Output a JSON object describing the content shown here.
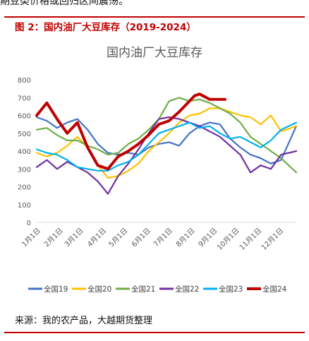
{
  "header": {
    "top_text": "期豆类价格或回归区间震荡。",
    "figure_title": "图 2：国内油厂大豆库存（2019-2024）",
    "source": "来源：我的农产品，大越期货整理"
  },
  "chart_data": {
    "type": "line",
    "title": "国内油厂大豆库存",
    "xlabel": "",
    "ylabel": "",
    "ylim": [
      0,
      800
    ],
    "yticks": [
      0,
      100,
      200,
      300,
      400,
      500,
      600,
      700,
      800
    ],
    "xlim": [
      0,
      51
    ],
    "x_tick_labels": [
      {
        "label": "1月1日",
        "week": 0
      },
      {
        "label": "2月1日",
        "week": 4.4
      },
      {
        "label": "3月1日",
        "week": 8.4
      },
      {
        "label": "4月1日",
        "week": 12.9
      },
      {
        "label": "5月1日",
        "week": 17.1
      },
      {
        "label": "6月1日",
        "week": 21.6
      },
      {
        "label": "7月1日",
        "week": 25.9
      },
      {
        "label": "8月1日",
        "week": 30.3
      },
      {
        "label": "9月1日",
        "week": 34.7
      },
      {
        "label": "10月1日",
        "week": 39.0
      },
      {
        "label": "11月1日",
        "week": 43.4
      },
      {
        "label": "12月1日",
        "week": 47.7
      }
    ],
    "grid": false,
    "legend_position": "bottom",
    "series": [
      {
        "name": "全国19",
        "color": "#4472C4",
        "width": 2.2,
        "x": [
          0,
          2,
          4,
          6,
          8,
          10,
          12,
          14,
          16,
          18,
          20,
          22,
          24,
          26,
          28,
          30,
          32,
          34,
          36,
          38,
          40,
          42,
          44,
          46,
          48,
          51
        ],
        "values": [
          590,
          570,
          530,
          560,
          580,
          520,
          440,
          390,
          380,
          390,
          380,
          420,
          440,
          450,
          430,
          500,
          540,
          560,
          550,
          470,
          420,
          380,
          360,
          330,
          350,
          540
        ]
      },
      {
        "name": "全国20",
        "color": "#FFC000",
        "width": 2.2,
        "x": [
          0,
          2,
          4,
          6,
          8,
          10,
          12,
          14,
          16,
          18,
          20,
          22,
          24,
          26,
          28,
          30,
          32,
          34,
          36,
          38,
          40,
          42,
          44,
          46,
          48,
          51
        ],
        "values": [
          390,
          370,
          390,
          430,
          480,
          420,
          320,
          250,
          260,
          290,
          330,
          400,
          450,
          500,
          560,
          600,
          610,
          640,
          640,
          620,
          600,
          590,
          550,
          600,
          510,
          540
        ]
      },
      {
        "name": "全国21",
        "color": "#70AD47",
        "width": 2.2,
        "x": [
          0,
          2,
          4,
          6,
          8,
          10,
          12,
          14,
          16,
          18,
          20,
          22,
          24,
          26,
          28,
          30,
          32,
          34,
          36,
          38,
          40,
          42,
          44,
          46,
          48,
          51
        ],
        "values": [
          520,
          530,
          490,
          460,
          460,
          430,
          410,
          380,
          390,
          440,
          470,
          520,
          580,
          680,
          700,
          680,
          690,
          670,
          640,
          610,
          560,
          480,
          440,
          400,
          360,
          280
        ]
      },
      {
        "name": "全国22",
        "color": "#7030A0",
        "width": 2.2,
        "x": [
          0,
          2,
          4,
          6,
          8,
          10,
          12,
          14,
          16,
          18,
          20,
          22,
          24,
          26,
          28,
          30,
          32,
          34,
          36,
          38,
          40,
          42,
          44,
          46,
          48,
          51
        ],
        "values": [
          310,
          350,
          300,
          340,
          310,
          280,
          230,
          160,
          260,
          330,
          410,
          500,
          580,
          590,
          580,
          560,
          540,
          510,
          480,
          430,
          380,
          280,
          320,
          300,
          380,
          400
        ]
      },
      {
        "name": "全国23",
        "color": "#00B0F0",
        "width": 2.2,
        "x": [
          0,
          2,
          4,
          6,
          8,
          10,
          12,
          14,
          16,
          18,
          20,
          22,
          24,
          26,
          28,
          30,
          32,
          34,
          36,
          38,
          40,
          42,
          44,
          46,
          48,
          51
        ],
        "values": [
          410,
          390,
          380,
          350,
          310,
          300,
          290,
          290,
          320,
          340,
          380,
          440,
          500,
          520,
          540,
          560,
          530,
          540,
          500,
          470,
          480,
          450,
          420,
          460,
          520,
          560
        ]
      },
      {
        "name": "全国24",
        "color": "#C00000",
        "width": 4,
        "x": [
          0,
          2,
          4,
          6,
          8,
          10,
          12,
          14,
          16,
          18,
          20,
          22,
          24,
          26,
          28,
          30,
          31,
          32,
          34,
          36,
          37
        ],
        "values": [
          600,
          670,
          580,
          500,
          560,
          420,
          320,
          300,
          370,
          400,
          440,
          490,
          550,
          570,
          620,
          680,
          710,
          720,
          690,
          690,
          690
        ]
      }
    ]
  }
}
